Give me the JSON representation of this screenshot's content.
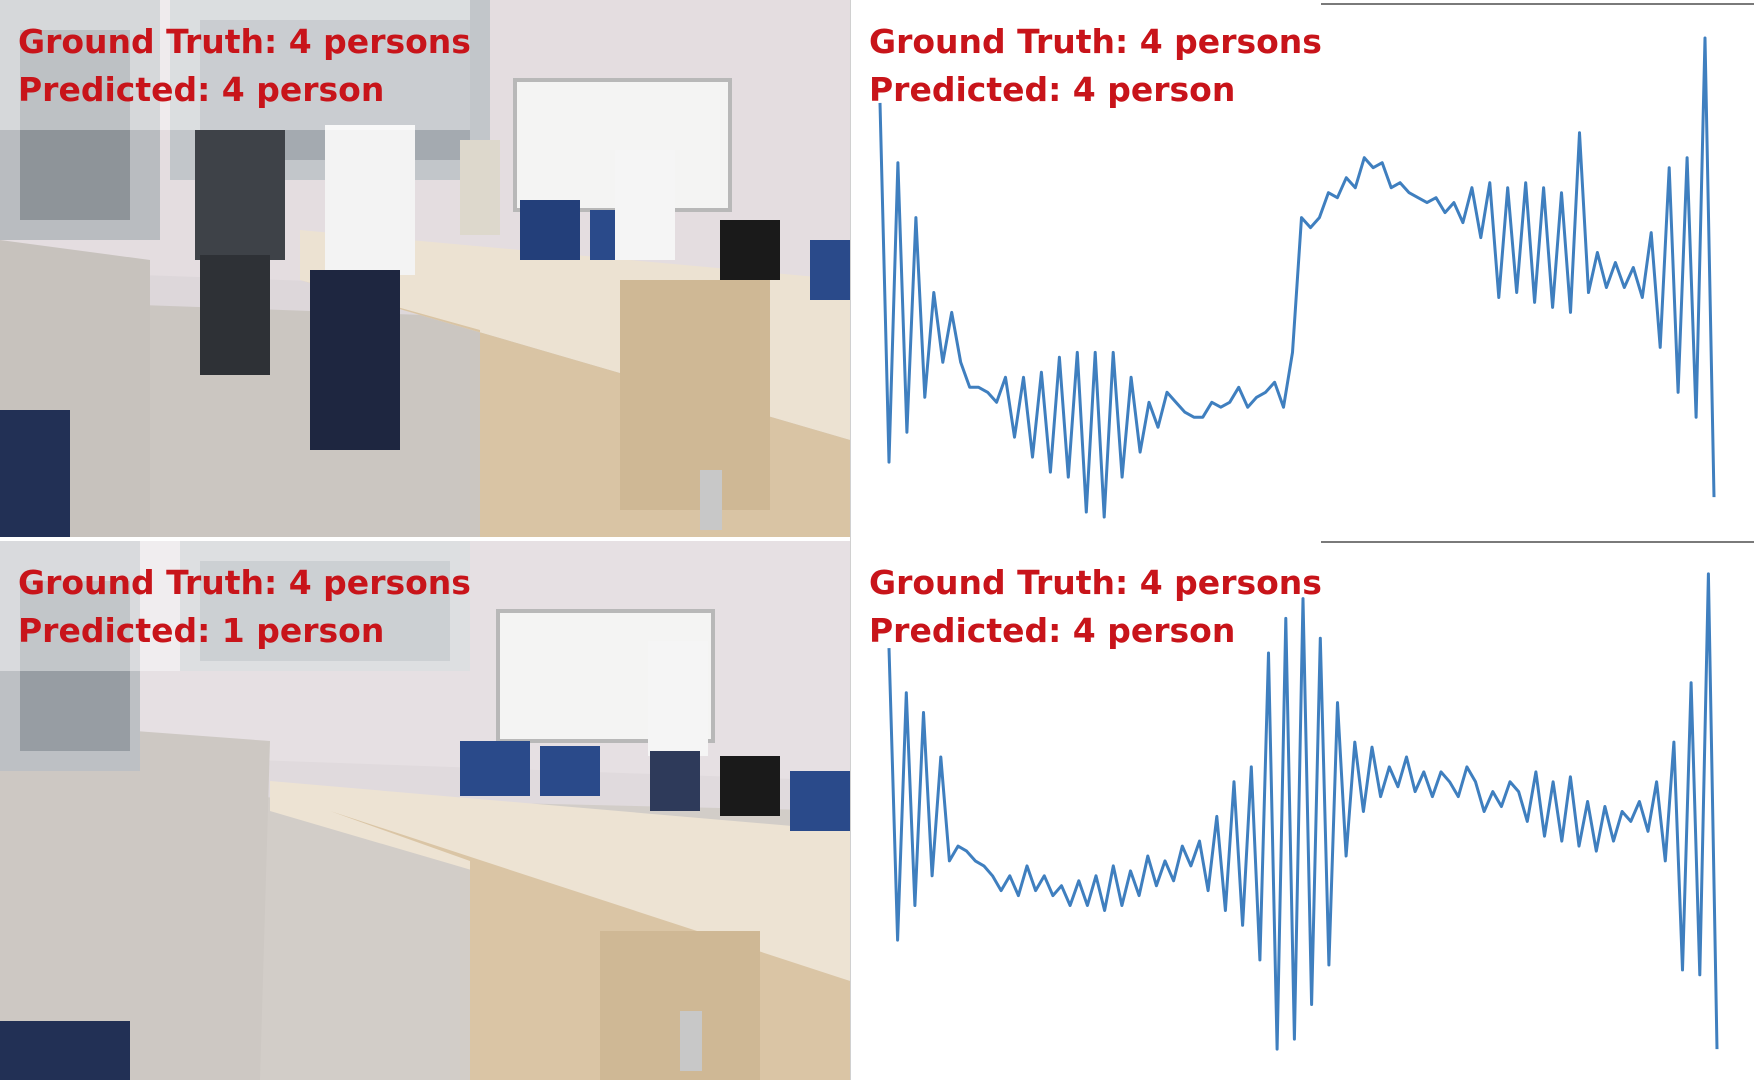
{
  "panels": [
    {
      "ground_truth": "Ground Truth: 4 persons",
      "predicted": "Predicted: 4 person"
    },
    {
      "ground_truth": "Ground Truth: 4 persons",
      "predicted": "Predicted: 4 person"
    },
    {
      "ground_truth": "Ground Truth: 4 persons",
      "predicted": "Predicted: 1 person"
    },
    {
      "ground_truth": "Ground Truth: 4 persons",
      "predicted": "Predicted: 4 person"
    }
  ],
  "colors": {
    "label": "#c8141a",
    "signal": "#3f7fbf"
  },
  "chart_data": [
    {
      "type": "line",
      "ylim": [
        0,
        1
      ],
      "series": [
        {
          "values": [
            0.85,
            0.13,
            0.73,
            0.19,
            0.62,
            0.26,
            0.47,
            0.33,
            0.43,
            0.33,
            0.28,
            0.28,
            0.27,
            0.25,
            0.3,
            0.18,
            0.3,
            0.14,
            0.31,
            0.11,
            0.34,
            0.1,
            0.35,
            0.03,
            0.35,
            0.02,
            0.35,
            0.1,
            0.3,
            0.15,
            0.25,
            0.2,
            0.27,
            0.25,
            0.23,
            0.22,
            0.22,
            0.25,
            0.24,
            0.25,
            0.28,
            0.24,
            0.26,
            0.27,
            0.29,
            0.24,
            0.35,
            0.62,
            0.6,
            0.62,
            0.67,
            0.66,
            0.7,
            0.68,
            0.74,
            0.72,
            0.73,
            0.68,
            0.69,
            0.67,
            0.66,
            0.65,
            0.66,
            0.63,
            0.65,
            0.61,
            0.68,
            0.58,
            0.69,
            0.46,
            0.68,
            0.47,
            0.69,
            0.45,
            0.68,
            0.44,
            0.67,
            0.43,
            0.79,
            0.47,
            0.55,
            0.48,
            0.53,
            0.48,
            0.52,
            0.46,
            0.59,
            0.36,
            0.72,
            0.27,
            0.74,
            0.22,
            0.98,
            0.06
          ]
        }
      ]
    },
    {
      "type": "line",
      "ylim": [
        0,
        1
      ],
      "series": [
        {
          "values": [
            0.82,
            0.23,
            0.73,
            0.3,
            0.69,
            0.36,
            0.6,
            0.39,
            0.42,
            0.41,
            0.39,
            0.38,
            0.36,
            0.33,
            0.36,
            0.32,
            0.38,
            0.33,
            0.36,
            0.32,
            0.34,
            0.3,
            0.35,
            0.3,
            0.36,
            0.29,
            0.38,
            0.3,
            0.37,
            0.32,
            0.4,
            0.34,
            0.39,
            0.35,
            0.42,
            0.38,
            0.43,
            0.33,
            0.48,
            0.29,
            0.55,
            0.26,
            0.58,
            0.19,
            0.81,
            0.01,
            0.88,
            0.03,
            0.92,
            0.1,
            0.84,
            0.18,
            0.71,
            0.4,
            0.63,
            0.49,
            0.62,
            0.52,
            0.58,
            0.54,
            0.6,
            0.53,
            0.57,
            0.52,
            0.57,
            0.55,
            0.52,
            0.58,
            0.55,
            0.49,
            0.53,
            0.5,
            0.55,
            0.53,
            0.47,
            0.57,
            0.44,
            0.55,
            0.43,
            0.56,
            0.42,
            0.51,
            0.41,
            0.5,
            0.43,
            0.49,
            0.47,
            0.51,
            0.45,
            0.55,
            0.39,
            0.63,
            0.17,
            0.75,
            0.16,
            0.97,
            0.01
          ]
        }
      ]
    }
  ]
}
